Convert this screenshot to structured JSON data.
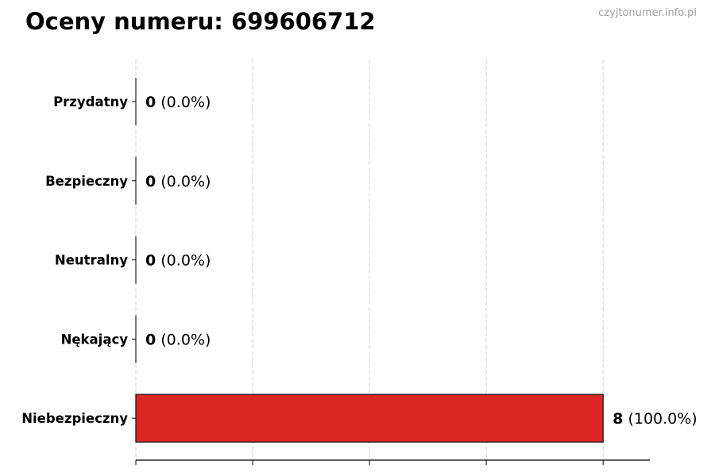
{
  "chart_data": {
    "type": "bar",
    "orientation": "horizontal",
    "title": "Oceny numeru: 699606712",
    "watermark": "czyjtonumer.info.pl",
    "categories": [
      "Przydatny",
      "Bezpieczny",
      "Neutralny",
      "Nękający",
      "Niebezpieczny"
    ],
    "values": [
      0,
      0,
      0,
      0,
      8
    ],
    "data_labels": [
      {
        "count": "0",
        "percent": "(0.0%)"
      },
      {
        "count": "0",
        "percent": "(0.0%)"
      },
      {
        "count": "0",
        "percent": "(0.0%)"
      },
      {
        "count": "0",
        "percent": "(0.0%)"
      },
      {
        "count": "8",
        "percent": "(100.0%)"
      }
    ],
    "colors": [
      "#2e9e44",
      "#4caf50",
      "#9e9e9e",
      "#f08c1c",
      "#dc2626"
    ],
    "xlim": [
      0,
      8.8
    ],
    "xticks": [
      0,
      2,
      4,
      6,
      8
    ],
    "xtick_labels_shown": false,
    "grid": "x-dashed",
    "xlabel": "",
    "ylabel": ""
  }
}
